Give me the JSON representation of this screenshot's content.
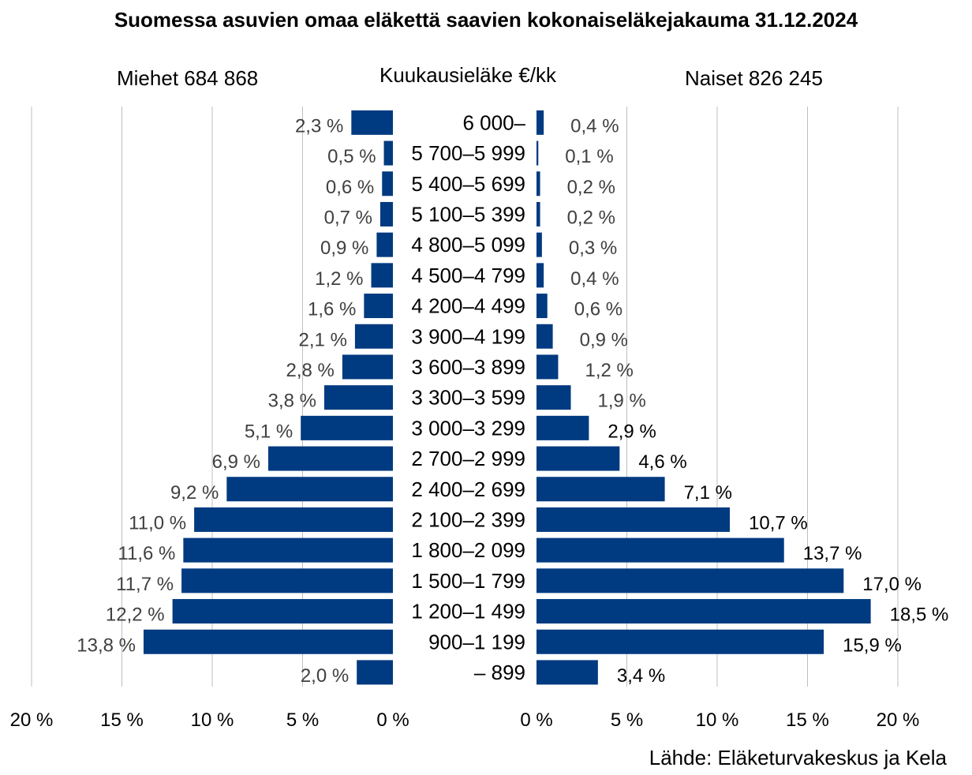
{
  "chart_data": {
    "type": "bar",
    "title": "Suomessa asuvien omaa eläkettä saavien kokonaiseläkejakauma 31.12.2024",
    "center_label": "Kuukausieläke €/kk",
    "categories": [
      "6 000–",
      "5 700–5 999",
      "5 400–5 699",
      "5 100–5 399",
      "4 800–5 099",
      "4 500–4 799",
      "4 200–4 499",
      "3 900–4 199",
      "3 600–3 899",
      "3 300–3 599",
      "3 000–3 299",
      "2 700–2 999",
      "2 400–2 699",
      "2 100–2 399",
      "1 800–2 099",
      "1 500–1 799",
      "1 200–1 499",
      "900–1 199",
      "– 899"
    ],
    "series": [
      {
        "name": "Miehet 684 868",
        "values": [
          2.3,
          0.5,
          0.6,
          0.7,
          0.9,
          1.2,
          1.6,
          2.1,
          2.8,
          3.8,
          5.1,
          6.9,
          9.2,
          11.0,
          11.6,
          11.7,
          12.2,
          13.8,
          2.0
        ],
        "labels": [
          "2,3 %",
          "0,5 %",
          "0,6 %",
          "0,7 %",
          "0,9 %",
          "1,2 %",
          "1,6 %",
          "2,1 %",
          "2,8 %",
          "3,8 %",
          "5,1 %",
          "6,9 %",
          "9,2 %",
          "11,0 %",
          "11,6 %",
          "11,7 %",
          "12,2 %",
          "13,8 %",
          "2,0 %"
        ]
      },
      {
        "name": "Naiset 826 245",
        "values": [
          0.4,
          0.1,
          0.2,
          0.2,
          0.3,
          0.4,
          0.6,
          0.9,
          1.2,
          1.9,
          2.9,
          4.6,
          7.1,
          10.7,
          13.7,
          17.0,
          18.5,
          15.9,
          3.4
        ],
        "labels": [
          "0,4 %",
          "0,1 %",
          "0,2 %",
          "0,2 %",
          "0,3 %",
          "0,4 %",
          "0,6 %",
          "0,9 %",
          "1,2 %",
          "1,9 %",
          "2,9 %",
          "4,6 %",
          "7,1 %",
          "10,7 %",
          "13,7 %",
          "17,0 %",
          "18,5 %",
          "15,9 %",
          "3,4 %"
        ]
      }
    ],
    "x_ticks": [
      "20 %",
      "15 %",
      "10 %",
      "5 %",
      "0 %"
    ],
    "x_ticks_right": [
      "0 %",
      "5 %",
      "10 %",
      "15 %",
      "20 %"
    ],
    "xlim": [
      0,
      20
    ],
    "grid": true,
    "source": "Lähde: Eläketurvakeskus ja Kela",
    "colors": {
      "bar": "#003A80",
      "grid": "#BFBFBF",
      "label_men": "#404040",
      "label_women_small": "#404040",
      "label_women_large": "#000000"
    }
  }
}
